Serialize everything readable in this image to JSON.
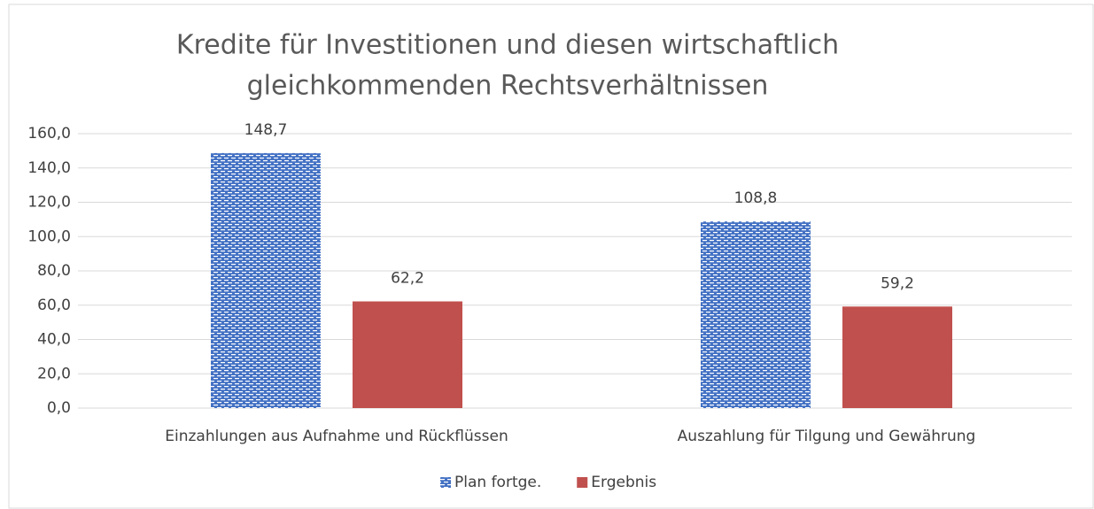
{
  "chart_data": {
    "type": "bar",
    "title": [
      "Kredite für Investitionen und diesen wirtschaftlich",
      "gleichkommenden Rechtsverhältnissen"
    ],
    "categories": [
      "Einzahlungen aus Aufnahme und Rückflüssen",
      "Auszahlung für Tilgung und Gewährung"
    ],
    "series": [
      {
        "name": "Plan fortge.",
        "color": "#4472c4",
        "pattern": true,
        "values": [
          148.7,
          108.8
        ],
        "value_labels": [
          "148,7",
          "108,8"
        ]
      },
      {
        "name": "Ergebnis",
        "color": "#c0504d",
        "values": [
          62.2,
          59.2
        ],
        "value_labels": [
          "62,2",
          "59,2"
        ]
      }
    ],
    "ylim": [
      0,
      160
    ],
    "yticks": [
      {
        "value": 0,
        "label": "0,0"
      },
      {
        "value": 20,
        "label": "20,0"
      },
      {
        "value": 40,
        "label": "40,0"
      },
      {
        "value": 60,
        "label": "60,0"
      },
      {
        "value": 80,
        "label": "80,0"
      },
      {
        "value": 100,
        "label": "100,0"
      },
      {
        "value": 120,
        "label": "120,0"
      },
      {
        "value": 140,
        "label": "140,0"
      },
      {
        "value": 160,
        "label": "160,0"
      }
    ],
    "grid": true,
    "legend": "bottom"
  }
}
